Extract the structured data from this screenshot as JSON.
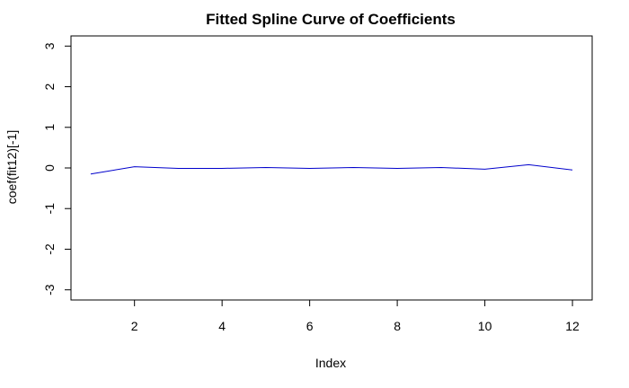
{
  "chart_data": {
    "type": "line",
    "title": "Fitted Spline Curve of Coefficients",
    "xlabel": "Index",
    "ylabel": "coef(fit12)[-1]",
    "xlim": [
      0.55,
      12.45
    ],
    "ylim": [
      -3.25,
      3.25
    ],
    "x_ticks": [
      2,
      4,
      6,
      8,
      10,
      12
    ],
    "y_ticks": [
      -3,
      -2,
      -1,
      0,
      1,
      2,
      3
    ],
    "grid": false,
    "legend": "none",
    "series": [
      {
        "color": "#0000cc",
        "x": [
          1,
          2,
          3,
          4,
          5,
          6,
          7,
          8,
          9,
          10,
          11,
          12
        ],
        "y": [
          -0.15,
          0.03,
          -0.01,
          -0.01,
          0.01,
          -0.01,
          0.01,
          -0.01,
          0.01,
          -0.03,
          0.08,
          -0.05
        ]
      }
    ]
  }
}
